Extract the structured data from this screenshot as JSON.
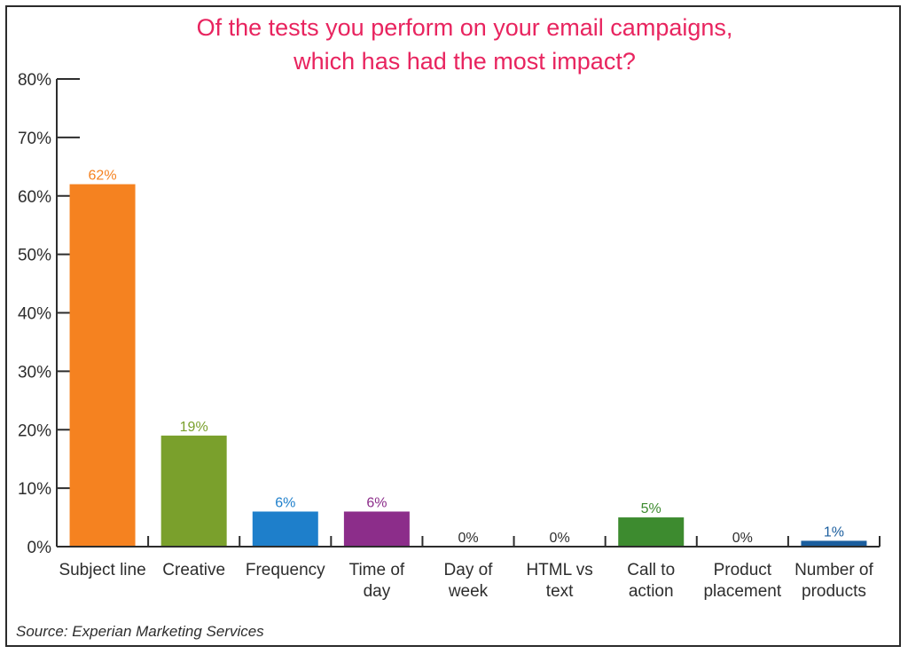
{
  "chart_data": {
    "type": "bar",
    "title_lines": [
      "Of the tests you perform on your email campaigns,",
      "which has had the most impact?"
    ],
    "categories": [
      [
        "Subject line"
      ],
      [
        "Creative"
      ],
      [
        "Frequency"
      ],
      [
        "Time of",
        "day"
      ],
      [
        "Day of",
        "week"
      ],
      [
        "HTML vs",
        "text"
      ],
      [
        "Call to",
        "action"
      ],
      [
        "Product",
        "placement"
      ],
      [
        "Number of",
        "products"
      ]
    ],
    "values": [
      62,
      19,
      6,
      6,
      0,
      0,
      5,
      0,
      1
    ],
    "value_labels": [
      "62%",
      "19%",
      "6%",
      "6%",
      "0%",
      "0%",
      "5%",
      "0%",
      "1%"
    ],
    "colors": [
      "#f58220",
      "#7aa02c",
      "#1e7fcb",
      "#8c2d8a",
      "#2d2d2d",
      "#2d2d2d",
      "#3d8b2f",
      "#2d2d2d",
      "#1b5e9e"
    ],
    "ylim": [
      0,
      80
    ],
    "yticks": [
      "0%",
      "10%",
      "20%",
      "30%",
      "40%",
      "50%",
      "60%",
      "70%",
      "80%"
    ],
    "xlabel": "",
    "ylabel": "",
    "source": "Source: Experian Marketing Services"
  }
}
